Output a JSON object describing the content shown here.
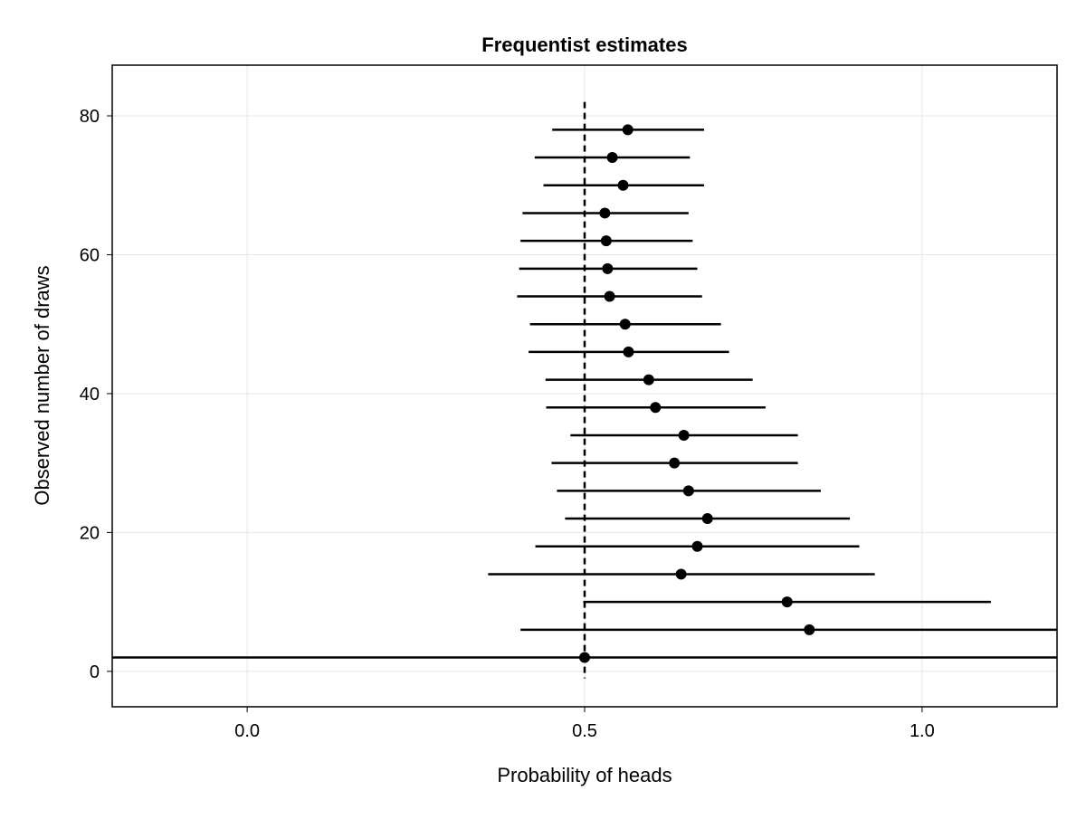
{
  "chart_data": {
    "type": "scatter",
    "title": "Frequentist estimates",
    "xlabel": "Probability of heads",
    "ylabel": "Observed number of draws",
    "xlim": [
      -0.2,
      1.2
    ],
    "ylim": [
      -5.1,
      87.3
    ],
    "xticks": [
      0.0,
      0.5,
      1.0
    ],
    "xtick_labels": [
      "0.0",
      "0.5",
      "1.0"
    ],
    "yticks": [
      0,
      20,
      40,
      60,
      80
    ],
    "ytick_labels": [
      "0",
      "20",
      "40",
      "60",
      "80"
    ],
    "grid": true,
    "legend": "none",
    "reference_line": {
      "x": 0.5,
      "y_from": -1,
      "y_to": 82,
      "style": "dashed"
    },
    "colors": {
      "points": "#000000",
      "intervals": "#000000",
      "grid": "#e5e5e5"
    },
    "points": [
      {
        "n": 2,
        "estimate": 0.5,
        "lower": -0.5,
        "upper": 1.5
      },
      {
        "n": 6,
        "estimate": 0.833,
        "lower": 0.405,
        "upper": 1.262
      },
      {
        "n": 10,
        "estimate": 0.8,
        "lower": 0.498,
        "upper": 1.102
      },
      {
        "n": 14,
        "estimate": 0.643,
        "lower": 0.357,
        "upper": 0.93
      },
      {
        "n": 18,
        "estimate": 0.667,
        "lower": 0.427,
        "upper": 0.907
      },
      {
        "n": 22,
        "estimate": 0.682,
        "lower": 0.471,
        "upper": 0.893
      },
      {
        "n": 26,
        "estimate": 0.654,
        "lower": 0.459,
        "upper": 0.85
      },
      {
        "n": 30,
        "estimate": 0.633,
        "lower": 0.451,
        "upper": 0.816
      },
      {
        "n": 34,
        "estimate": 0.647,
        "lower": 0.479,
        "upper": 0.816
      },
      {
        "n": 38,
        "estimate": 0.605,
        "lower": 0.443,
        "upper": 0.768
      },
      {
        "n": 42,
        "estimate": 0.595,
        "lower": 0.442,
        "upper": 0.749
      },
      {
        "n": 46,
        "estimate": 0.565,
        "lower": 0.417,
        "upper": 0.714
      },
      {
        "n": 50,
        "estimate": 0.56,
        "lower": 0.419,
        "upper": 0.702
      },
      {
        "n": 54,
        "estimate": 0.537,
        "lower": 0.4,
        "upper": 0.674
      },
      {
        "n": 58,
        "estimate": 0.534,
        "lower": 0.403,
        "upper": 0.667
      },
      {
        "n": 62,
        "estimate": 0.532,
        "lower": 0.405,
        "upper": 0.66
      },
      {
        "n": 66,
        "estimate": 0.53,
        "lower": 0.408,
        "upper": 0.654
      },
      {
        "n": 70,
        "estimate": 0.557,
        "lower": 0.439,
        "upper": 0.677
      },
      {
        "n": 74,
        "estimate": 0.541,
        "lower": 0.426,
        "upper": 0.656
      },
      {
        "n": 78,
        "estimate": 0.564,
        "lower": 0.452,
        "upper": 0.677
      }
    ]
  }
}
